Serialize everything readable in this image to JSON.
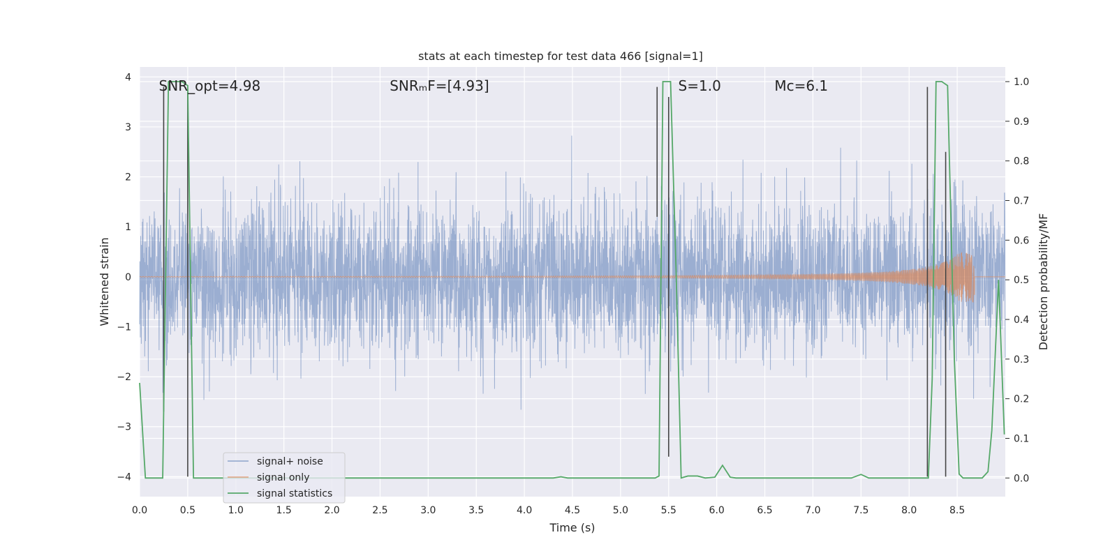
{
  "chart_data": {
    "type": "line",
    "title": "stats at each timestep for test data 466 [signal=1]",
    "xlabel": "Time (s)",
    "ylabel": "Whitened strain",
    "ylabel_right": "Detection probability/MF",
    "xlim": [
      0.0,
      9.0
    ],
    "ylim": [
      -4.4,
      4.2
    ],
    "ylim_right": [
      -0.047,
      1.037
    ],
    "x_ticks": [
      0.0,
      0.5,
      1.0,
      1.5,
      2.0,
      2.5,
      3.0,
      3.5,
      4.0,
      4.5,
      5.0,
      5.5,
      6.0,
      6.5,
      7.0,
      7.5,
      8.0,
      8.5
    ],
    "x_tick_labels": [
      "0.0",
      "0.5",
      "1.0",
      "1.5",
      "2.0",
      "2.5",
      "3.0",
      "3.5",
      "4.0",
      "4.5",
      "5.0",
      "5.5",
      "6.0",
      "6.5",
      "7.0",
      "7.5",
      "8.0",
      "8.5"
    ],
    "y_ticks": [
      -4,
      -3,
      -2,
      -1,
      0,
      1,
      2,
      3,
      4
    ],
    "y_tick_labels": [
      "−4",
      "−3",
      "−2",
      "−1",
      "0",
      "1",
      "2",
      "3",
      "4"
    ],
    "y_ticks_right": [
      0.0,
      0.1,
      0.2,
      0.3,
      0.4,
      0.5,
      0.6,
      0.7,
      0.8,
      0.9,
      1.0
    ],
    "y_tick_labels_right": [
      "0.0",
      "0.1",
      "0.2",
      "0.3",
      "0.4",
      "0.5",
      "0.6",
      "0.7",
      "0.8",
      "0.9",
      "1.0"
    ],
    "grid": true,
    "legend_position": "lower-left",
    "annotations": [
      {
        "id": "snr-opt",
        "text": "SNR_opt=4.98",
        "x": 0.2,
        "y": 3.82
      },
      {
        "id": "snr-mf",
        "text": "SNRₘF=[4.93]",
        "x": 2.6,
        "y": 3.82
      },
      {
        "id": "s-value",
        "text": "S=1.0",
        "x": 5.6,
        "y": 3.82
      },
      {
        "id": "mc-value",
        "text": "Mᴄ=6.1",
        "x": 6.6,
        "y": 3.82
      }
    ],
    "colors": {
      "noise": "#4c72b0",
      "signal_only": "#dd8452",
      "statistics": "#55a868",
      "markers": "#444444",
      "background": "#eaeaf2",
      "grid": "#ffffff"
    },
    "series": [
      {
        "name": "signal+ noise",
        "kind": "noise",
        "sigma": 0.75,
        "seed": 466,
        "x_range": [
          0.0,
          9.0
        ],
        "n_points": 4096
      },
      {
        "name": "signal only",
        "kind": "chirp",
        "x_range": [
          0.0,
          8.68
        ],
        "end_time": 8.68,
        "peak_amplitude": 0.5
      },
      {
        "name": "signal statistics",
        "kind": "probability",
        "axis": "right",
        "x": [
          0.0,
          0.06,
          0.1,
          0.2,
          0.24,
          0.3,
          0.44,
          0.5,
          0.56,
          0.8,
          1.5,
          3.0,
          4.0,
          4.2,
          4.3,
          4.38,
          4.45,
          4.6,
          5.0,
          5.25,
          5.36,
          5.4,
          5.44,
          5.52,
          5.58,
          5.63,
          5.7,
          5.8,
          5.88,
          5.98,
          6.06,
          6.14,
          6.2,
          7.0,
          7.4,
          7.5,
          7.58,
          8.1,
          8.2,
          8.24,
          8.28,
          8.34,
          8.4,
          8.47,
          8.52,
          8.56,
          8.64,
          8.68,
          8.76,
          8.82,
          8.86,
          8.93,
          8.99
        ],
        "y": [
          0.24,
          0.0,
          0.0,
          0.0,
          0.0,
          1.0,
          1.0,
          0.99,
          0.0,
          0.0,
          0.0,
          0.0,
          0.0,
          0.0,
          0.0,
          0.003,
          0.0,
          0.0,
          0.0,
          0.0,
          0.0,
          0.005,
          1.0,
          1.0,
          0.5,
          0.0,
          0.005,
          0.005,
          0.0,
          0.002,
          0.032,
          0.002,
          0.0,
          0.0,
          0.0,
          0.009,
          0.0,
          0.0,
          0.0,
          0.25,
          1.0,
          1.0,
          0.99,
          0.3,
          0.01,
          0.0,
          0.0,
          0.0,
          0.0,
          0.016,
          0.12,
          0.5,
          0.11
        ]
      }
    ],
    "marker_lines": [
      {
        "x": 0.25,
        "y_top": 3.8,
        "y_bottom": -2.7
      },
      {
        "x": 0.5,
        "y_top": 3.7,
        "y_bottom": -4.0
      },
      {
        "x": 5.38,
        "y_top": 3.8,
        "y_bottom": 1.2
      },
      {
        "x": 5.5,
        "y_top": 3.6,
        "y_bottom": -3.6
      },
      {
        "x": 8.19,
        "y_top": 3.8,
        "y_bottom": -4.0
      },
      {
        "x": 8.38,
        "y_top": 2.5,
        "y_bottom": -4.0
      }
    ]
  }
}
